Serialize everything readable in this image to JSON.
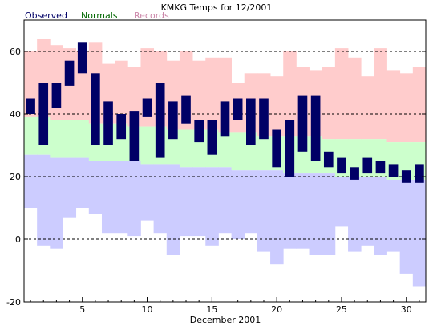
{
  "chart_data": {
    "type": "bar",
    "title": "KMKG Temps for 12/2001",
    "xlabel": "December 2001",
    "ylabel": "",
    "xlim": [
      0.5,
      31.5
    ],
    "ylim": [
      -20,
      70
    ],
    "x_ticks": [
      5,
      10,
      15,
      20,
      25,
      30
    ],
    "y_ticks": [
      -20,
      0,
      20,
      40,
      60
    ],
    "gridlines_y": [
      0,
      20,
      40,
      60
    ],
    "grid": "dashed horizontal at labeled y ticks",
    "legend": [
      {
        "name": "Observed",
        "color": "#000066"
      },
      {
        "name": "Normals",
        "color": "#006600"
      },
      {
        "name": "Records",
        "color": "#cc88aa"
      }
    ],
    "legend_placement": "top-left",
    "days": [
      1,
      2,
      3,
      4,
      5,
      6,
      7,
      8,
      9,
      10,
      11,
      12,
      13,
      14,
      15,
      16,
      17,
      18,
      19,
      20,
      21,
      22,
      23,
      24,
      25,
      26,
      27,
      28,
      29,
      30,
      31
    ],
    "series": [
      {
        "name": "Records",
        "record_high": [
          60,
          64,
          62,
          61,
          60,
          63,
          56,
          57,
          55,
          61,
          60,
          57,
          60,
          57,
          58,
          58,
          50,
          53,
          53,
          52,
          60,
          55,
          54,
          55,
          61,
          58,
          52,
          61,
          54,
          53,
          55
        ],
        "record_low": [
          10,
          -2,
          -3,
          7,
          10,
          8,
          2,
          2,
          1,
          6,
          2,
          -5,
          1,
          1,
          -2,
          2,
          0,
          2,
          -4,
          -8,
          -3,
          -3,
          -5,
          -5,
          4,
          -4,
          -2,
          -5,
          -4,
          -11,
          -15
        ],
        "colors": {
          "high_side": "#ffcccc",
          "low_side": "#ccccff"
        }
      },
      {
        "name": "Normals",
        "normal_high": [
          39,
          39,
          38,
          38,
          38,
          37,
          37,
          37,
          36,
          36,
          36,
          35,
          35,
          35,
          35,
          34,
          34,
          34,
          33,
          33,
          33,
          33,
          33,
          32,
          32,
          32,
          32,
          32,
          31,
          31,
          31
        ],
        "normal_low": [
          27,
          27,
          26,
          26,
          26,
          25,
          25,
          25,
          25,
          24,
          24,
          24,
          23,
          23,
          23,
          23,
          22,
          22,
          22,
          22,
          21,
          21,
          21,
          21,
          20,
          20,
          20,
          20,
          19,
          19,
          19
        ],
        "color": "#ccffcc"
      },
      {
        "name": "Observed",
        "observed_high": [
          45,
          50,
          50,
          57,
          63,
          53,
          44,
          40,
          41,
          45,
          50,
          44,
          46,
          38,
          38,
          44,
          45,
          45,
          45,
          35,
          38,
          46,
          46,
          28,
          26,
          23,
          26,
          25,
          24,
          22,
          24
        ],
        "observed_low": [
          40,
          30,
          42,
          49,
          53,
          30,
          30,
          32,
          25,
          39,
          26,
          32,
          37,
          31,
          27,
          33,
          38,
          30,
          32,
          23,
          20,
          28,
          25,
          23,
          21,
          19,
          21,
          21,
          20,
          18,
          18
        ],
        "color": "#000066"
      }
    ]
  }
}
